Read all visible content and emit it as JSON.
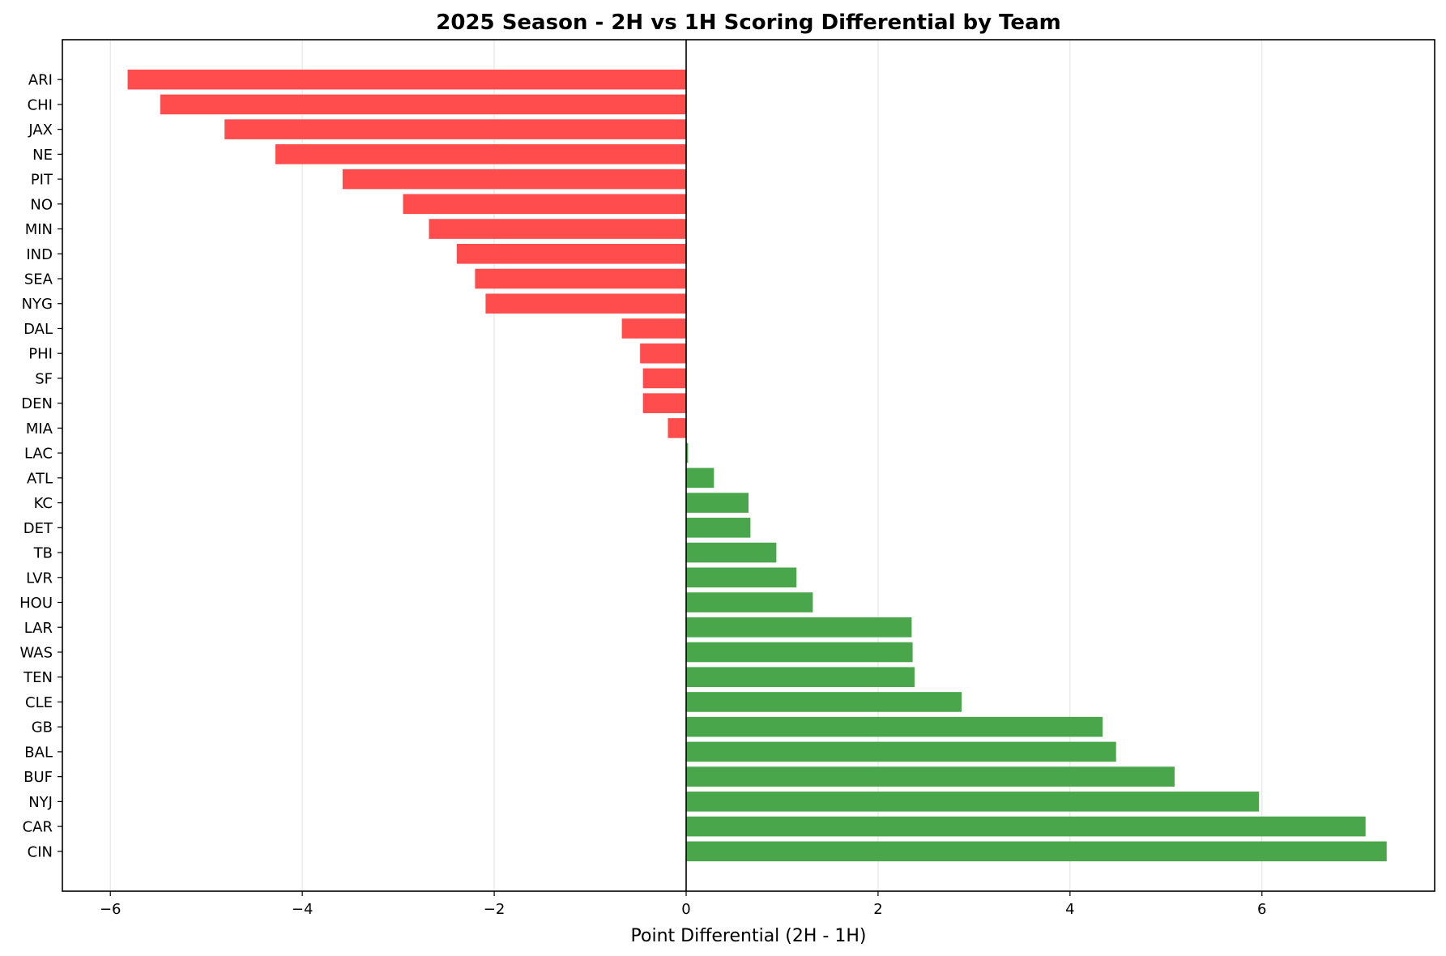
{
  "chart_data": {
    "type": "bar",
    "orientation": "horizontal",
    "title": "2025 Season - 2H vs 1H Scoring Differential by Team",
    "xlabel": "Point Differential (2H - 1H)",
    "ylabel": "",
    "xlim": [
      -6.5,
      7.8
    ],
    "xticks": [
      -6,
      -4,
      -2,
      0,
      2,
      4,
      6
    ],
    "xtick_labels": [
      "−6",
      "−4",
      "−2",
      "0",
      "2",
      "4",
      "6"
    ],
    "grid": "vertical",
    "colors": {
      "negative": "#ff4d4d",
      "positive": "#4aa64a",
      "zero_line": "#000000",
      "grid": "#e6e6e6"
    },
    "categories": [
      "ARI",
      "CHI",
      "JAX",
      "NE",
      "PIT",
      "NO",
      "MIN",
      "IND",
      "SEA",
      "NYG",
      "DAL",
      "PHI",
      "SF",
      "DEN",
      "MIA",
      "LAC",
      "ATL",
      "KC",
      "DET",
      "TB",
      "LVR",
      "HOU",
      "LAR",
      "WAS",
      "TEN",
      "CLE",
      "GB",
      "BAL",
      "BUF",
      "NYJ",
      "CAR",
      "CIN"
    ],
    "values": [
      -5.82,
      -5.48,
      -4.81,
      -4.28,
      -3.58,
      -2.95,
      -2.68,
      -2.39,
      -2.2,
      -2.09,
      -0.67,
      -0.48,
      -0.45,
      -0.45,
      -0.19,
      0.02,
      0.29,
      0.65,
      0.67,
      0.94,
      1.15,
      1.32,
      2.35,
      2.36,
      2.38,
      2.87,
      4.34,
      4.48,
      5.09,
      5.97,
      7.08,
      7.3
    ]
  }
}
